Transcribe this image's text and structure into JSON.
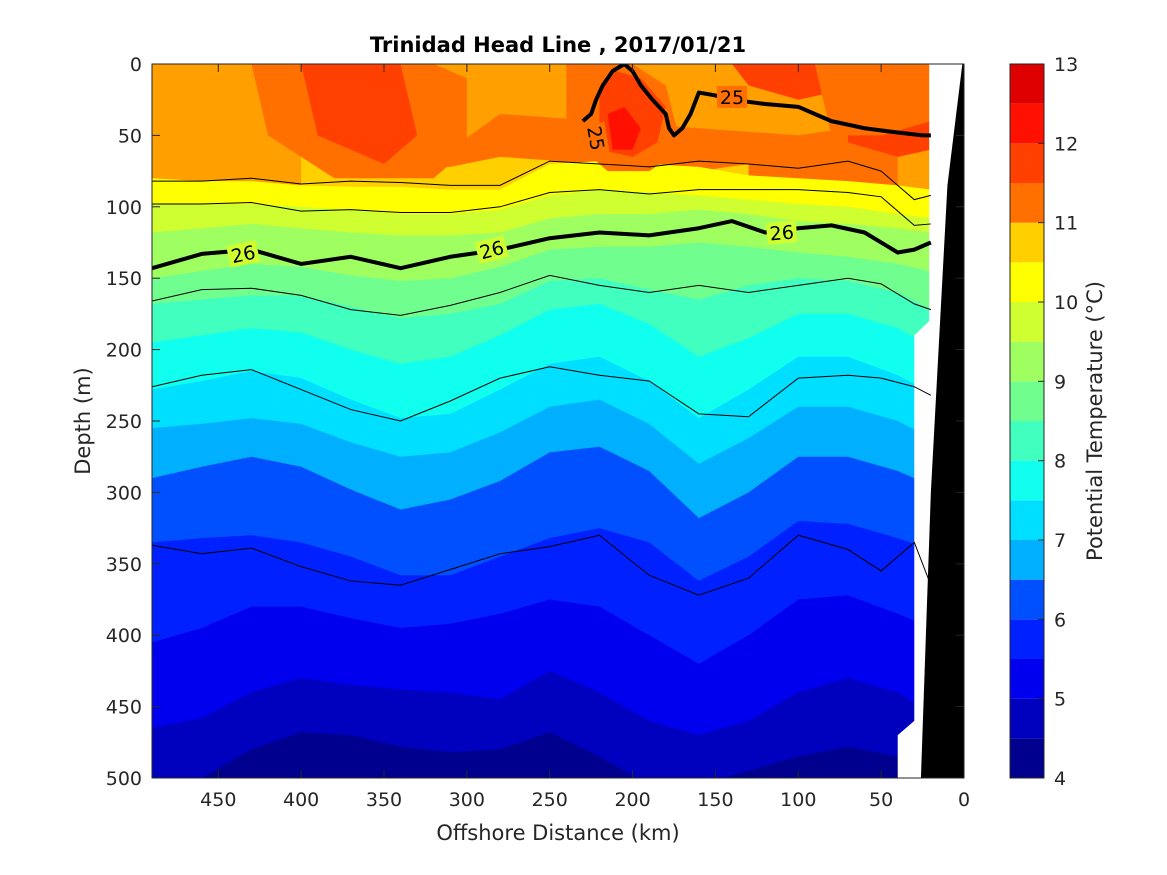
{
  "chart_data": {
    "type": "contour",
    "title": "Trinidad Head Line , 2017/01/21",
    "xlabel": "Offshore Distance (km)",
    "ylabel": "Depth (m)",
    "xlim": [
      490,
      0
    ],
    "ylim": [
      0,
      500
    ],
    "x_reversed": true,
    "y_reversed": true,
    "xticks": [
      450,
      400,
      350,
      300,
      250,
      200,
      150,
      100,
      50,
      0
    ],
    "yticks": [
      0,
      50,
      100,
      150,
      200,
      250,
      300,
      350,
      400,
      450,
      500
    ],
    "colorbar": {
      "label": "Potential Temperature (°C)",
      "ticks": [
        4,
        5,
        6,
        7,
        8,
        9,
        10,
        11,
        12,
        13
      ],
      "levels": [
        4,
        4.5,
        5,
        5.5,
        6,
        6.5,
        7,
        7.5,
        8,
        8.5,
        9,
        9.5,
        10,
        10.5,
        11,
        11.5,
        12,
        12.5,
        13
      ],
      "colors": [
        "#00008f",
        "#0000bf",
        "#0000ef",
        "#0020ff",
        "#0050ff",
        "#0080ff",
        "#00b0ff",
        "#00dfff",
        "#10ffef",
        "#40ffbf",
        "#70ff8f",
        "#9fff60",
        "#cfff30",
        "#ffff00",
        "#ffcf00",
        "#ff9f00",
        "#ff7000",
        "#ff4000",
        "#ff1000",
        "#df0000",
        "#af0000"
      ]
    },
    "isotherm_interfaces": [
      {
        "temp": 12.0,
        "depth": [
          null,
          null,
          null,
          null,
          null,
          null,
          null,
          null,
          null,
          null,
          null,
          null,
          null,
          null,
          null,
          null,
          null
        ]
      },
      {
        "temp": 11.5,
        "depth": [
          null,
          null,
          null,
          null,
          55,
          60,
          60,
          35,
          null,
          null,
          null,
          null,
          null,
          50,
          45,
          50,
          null
        ]
      },
      {
        "temp": 11.0,
        "depth": [
          null,
          null,
          null,
          48,
          68,
          72,
          72,
          65,
          null,
          null,
          null,
          75,
          70,
          null,
          null,
          null,
          null
        ]
      },
      {
        "temp": 10.5,
        "depth": [
          80,
          82,
          82,
          85,
          86,
          86,
          88,
          88,
          70,
          68,
          70,
          72,
          78,
          80,
          82,
          85,
          88
        ]
      },
      {
        "temp": 10.0,
        "depth": [
          98,
          98,
          98,
          100,
          102,
          105,
          105,
          102,
          92,
          88,
          90,
          92,
          95,
          98,
          100,
          105,
          108
        ]
      },
      {
        "temp": 9.5,
        "depth": [
          118,
          115,
          112,
          115,
          118,
          120,
          120,
          118,
          108,
          105,
          105,
          102,
          105,
          110,
          112,
          115,
          118
        ]
      },
      {
        "temp": 9.0,
        "depth": [
          150,
          145,
          140,
          142,
          148,
          152,
          150,
          142,
          130,
          128,
          128,
          125,
          128,
          132,
          135,
          140,
          145
        ]
      },
      {
        "temp": 8.5,
        "depth": [
          168,
          165,
          162,
          162,
          170,
          178,
          175,
          168,
          152,
          150,
          158,
          165,
          155,
          150,
          152,
          160,
          172
        ]
      },
      {
        "temp": 8.0,
        "depth": [
          195,
          190,
          185,
          188,
          200,
          210,
          205,
          190,
          172,
          168,
          182,
          205,
          192,
          175,
          175,
          185,
          198
        ]
      },
      {
        "temp": 7.5,
        "depth": [
          228,
          222,
          215,
          220,
          235,
          248,
          245,
          228,
          210,
          205,
          222,
          248,
          228,
          205,
          205,
          218,
          230
        ]
      },
      {
        "temp": 7.0,
        "depth": [
          255,
          252,
          248,
          252,
          265,
          275,
          272,
          258,
          240,
          235,
          252,
          280,
          262,
          240,
          240,
          250,
          262
        ]
      },
      {
        "temp": 6.5,
        "depth": [
          290,
          282,
          275,
          282,
          298,
          312,
          305,
          292,
          272,
          268,
          285,
          318,
          300,
          275,
          275,
          285,
          295
        ]
      },
      {
        "temp": 6.0,
        "depth": [
          335,
          332,
          330,
          335,
          345,
          358,
          358,
          345,
          332,
          325,
          335,
          362,
          345,
          320,
          322,
          332,
          340
        ]
      },
      {
        "temp": 5.5,
        "depth": [
          405,
          395,
          380,
          380,
          388,
          395,
          392,
          385,
          375,
          380,
          400,
          420,
          400,
          375,
          372,
          385,
          395
        ]
      },
      {
        "temp": 5.0,
        "depth": [
          465,
          458,
          440,
          430,
          435,
          438,
          440,
          445,
          425,
          440,
          460,
          470,
          460,
          440,
          430,
          440,
          455
        ]
      },
      {
        "temp": 4.5,
        "depth": [
          505,
          500,
          480,
          468,
          470,
          478,
          482,
          480,
          468,
          485,
          505,
          505,
          495,
          485,
          478,
          485,
          500
        ]
      }
    ],
    "interface_x_km": [
      490,
      460,
      430,
      400,
      370,
      340,
      310,
      280,
      250,
      220,
      190,
      160,
      130,
      100,
      70,
      40,
      20
    ],
    "density_contours": [
      {
        "label": "25",
        "x": [
          230,
          225,
          222,
          218,
          212,
          205,
          200,
          195,
          188,
          180,
          178,
          175,
          170,
          165,
          160,
          150,
          140,
          120,
          100,
          90,
          80,
          60,
          40,
          25,
          20
        ],
        "y": [
          40,
          35,
          25,
          15,
          5,
          0,
          5,
          15,
          25,
          35,
          45,
          50,
          45,
          35,
          20,
          22,
          25,
          28,
          30,
          35,
          40,
          45,
          48,
          50,
          50
        ]
      },
      {
        "label": "26",
        "x": [
          490,
          460,
          430,
          400,
          370,
          340,
          310,
          280,
          250,
          220,
          190,
          160,
          140,
          120,
          100,
          80,
          60,
          40,
          30,
          20
        ],
        "y": [
          143,
          133,
          130,
          140,
          135,
          143,
          135,
          130,
          122,
          118,
          120,
          115,
          110,
          118,
          115,
          113,
          118,
          132,
          130,
          125
        ]
      }
    ],
    "thin_contours": [
      {
        "x": [
          490,
          460,
          430,
          400,
          370,
          340,
          310,
          280,
          250,
          220,
          190,
          160,
          130,
          100,
          70,
          50,
          30,
          20
        ],
        "y": [
          82,
          82,
          80,
          84,
          82,
          83,
          85,
          85,
          68,
          70,
          72,
          68,
          70,
          73,
          68,
          75,
          95,
          92
        ]
      },
      {
        "x": [
          490,
          460,
          430,
          400,
          370,
          340,
          310,
          280,
          250,
          220,
          190,
          160,
          130,
          100,
          70,
          50,
          30,
          20
        ],
        "y": [
          98,
          98,
          97,
          103,
          102,
          104,
          104,
          100,
          90,
          88,
          91,
          88,
          88,
          88,
          90,
          93,
          113,
          112
        ]
      },
      {
        "x": [
          490,
          460,
          430,
          400,
          370,
          340,
          310,
          280,
          250,
          220,
          190,
          160,
          130,
          100,
          70,
          50,
          30,
          20
        ],
        "y": [
          166,
          158,
          157,
          162,
          172,
          176,
          169,
          160,
          148,
          155,
          160,
          155,
          160,
          155,
          150,
          154,
          168,
          172
        ]
      },
      {
        "x": [
          490,
          460,
          430,
          400,
          370,
          340,
          310,
          280,
          250,
          220,
          190,
          160,
          130,
          100,
          70,
          50,
          30,
          20
        ],
        "y": [
          226,
          218,
          214,
          228,
          242,
          250,
          236,
          220,
          212,
          218,
          222,
          245,
          247,
          220,
          218,
          220,
          226,
          232
        ]
      },
      {
        "x": [
          490,
          460,
          430,
          400,
          370,
          340,
          310,
          280,
          250,
          220,
          190,
          160,
          130,
          100,
          70,
          50,
          30,
          20
        ],
        "y": [
          337,
          343,
          339,
          352,
          362,
          365,
          354,
          343,
          338,
          330,
          358,
          372,
          360,
          330,
          340,
          355,
          335,
          365
        ]
      }
    ]
  }
}
